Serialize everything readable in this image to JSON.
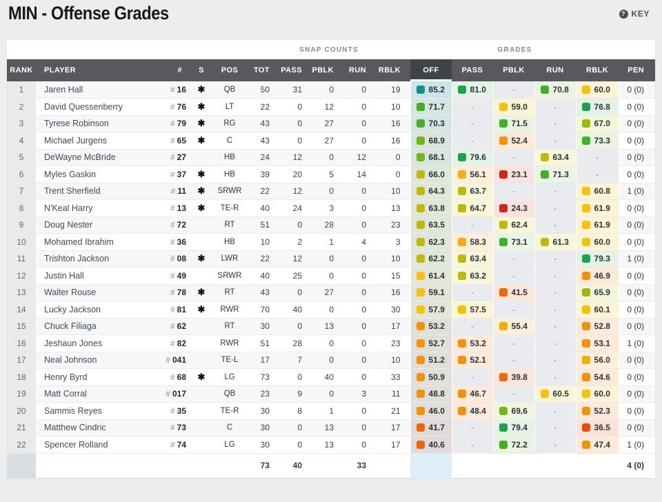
{
  "header": {
    "title": "MIN - Offense Grades",
    "key_label": "KEY",
    "key_icon": "?"
  },
  "table": {
    "group_headers": {
      "snap_counts": "SNAP COUNTS",
      "grades": "GRADES"
    },
    "columns": [
      "RANK",
      "PLAYER",
      "#",
      "S",
      "POS",
      "TOT",
      "PASS",
      "PBLK",
      "RUN",
      "RBLK",
      "OFF",
      "PASS",
      "PBLK",
      "RUN",
      "RBLK",
      "PEN"
    ],
    "rows": [
      {
        "rank": "1",
        "name": "Jaren Hall",
        "jersey": "16",
        "star": "✱",
        "pos": "QB",
        "snaps": [
          "50",
          "31",
          "0",
          "0",
          "19"
        ],
        "grades": [
          {
            "v": "85.2",
            "c": "teal"
          },
          {
            "v": "81.0",
            "c": "green1"
          },
          null,
          {
            "v": "70.8",
            "c": "green2"
          },
          {
            "v": "60.0",
            "c": "yellow"
          }
        ],
        "pen": "0 (0)"
      },
      {
        "rank": "2",
        "name": "David Quessenberry",
        "jersey": "76",
        "star": "✱",
        "pos": "LT",
        "snaps": [
          "22",
          "0",
          "12",
          "0",
          "10"
        ],
        "grades": [
          {
            "v": "71.7",
            "c": "green2"
          },
          null,
          {
            "v": "59.0",
            "c": "yellow"
          },
          null,
          {
            "v": "76.8",
            "c": "green1"
          }
        ],
        "pen": "0 (0)"
      },
      {
        "rank": "3",
        "name": "Tyrese Robinson",
        "jersey": "79",
        "star": "✱",
        "pos": "RG",
        "snaps": [
          "43",
          "0",
          "27",
          "0",
          "16"
        ],
        "grades": [
          {
            "v": "70.3",
            "c": "green2"
          },
          null,
          {
            "v": "71.5",
            "c": "green2"
          },
          null,
          {
            "v": "67.0",
            "c": "lime"
          }
        ],
        "pen": "0 (0)"
      },
      {
        "rank": "4",
        "name": "Michael Jurgens",
        "jersey": "65",
        "star": "✱",
        "pos": "C",
        "snaps": [
          "43",
          "0",
          "27",
          "0",
          "16"
        ],
        "grades": [
          {
            "v": "68.9",
            "c": "ygreen"
          },
          null,
          {
            "v": "52.4",
            "c": "orange"
          },
          null,
          {
            "v": "73.3",
            "c": "green2"
          }
        ],
        "pen": "0 (0)"
      },
      {
        "rank": "5",
        "name": "DeWayne McBride",
        "jersey": "27",
        "star": "",
        "pos": "HB",
        "snaps": [
          "24",
          "12",
          "0",
          "12",
          "0"
        ],
        "grades": [
          {
            "v": "68.1",
            "c": "ygreen"
          },
          {
            "v": "79.6",
            "c": "green1"
          },
          null,
          {
            "v": "63.4",
            "c": "olive"
          },
          null
        ],
        "pen": "0 (0)"
      },
      {
        "rank": "6",
        "name": "Myles Gaskin",
        "jersey": "37",
        "star": "✱",
        "pos": "HB",
        "snaps": [
          "39",
          "20",
          "5",
          "14",
          "0"
        ],
        "grades": [
          {
            "v": "66.0",
            "c": "olive"
          },
          {
            "v": "56.1",
            "c": "yorange"
          },
          {
            "v": "23.1",
            "c": "red"
          },
          {
            "v": "71.3",
            "c": "green2"
          },
          null
        ],
        "pen": "0 (0)"
      },
      {
        "rank": "7",
        "name": "Trent Sherfield",
        "jersey": "11",
        "star": "✱",
        "pos": "SRWR",
        "snaps": [
          "22",
          "12",
          "0",
          "0",
          "10"
        ],
        "grades": [
          {
            "v": "64.3",
            "c": "olive"
          },
          {
            "v": "63.7",
            "c": "olive"
          },
          null,
          null,
          {
            "v": "60.8",
            "c": "yellow"
          }
        ],
        "pen": "1 (0)"
      },
      {
        "rank": "8",
        "name": "N'Keal Harry",
        "jersey": "13",
        "star": "✱",
        "pos": "TE-R",
        "snaps": [
          "40",
          "24",
          "3",
          "0",
          "13"
        ],
        "grades": [
          {
            "v": "63.8",
            "c": "olive"
          },
          {
            "v": "64.7",
            "c": "olive"
          },
          {
            "v": "24.3",
            "c": "red"
          },
          null,
          {
            "v": "61.9",
            "c": "yellow"
          }
        ],
        "pen": "0 (0)"
      },
      {
        "rank": "9",
        "name": "Doug Nester",
        "jersey": "72",
        "star": "",
        "pos": "RT",
        "snaps": [
          "51",
          "0",
          "28",
          "0",
          "23"
        ],
        "grades": [
          {
            "v": "63.5",
            "c": "olive"
          },
          null,
          {
            "v": "62.4",
            "c": "olive"
          },
          null,
          {
            "v": "61.9",
            "c": "yellow"
          }
        ],
        "pen": "0 (0)"
      },
      {
        "rank": "10",
        "name": "Mohamed Ibrahim",
        "jersey": "36",
        "star": "",
        "pos": "HB",
        "snaps": [
          "10",
          "2",
          "1",
          "4",
          "3"
        ],
        "grades": [
          {
            "v": "62.3",
            "c": "olive"
          },
          {
            "v": "58.3",
            "c": "yorange"
          },
          {
            "v": "73.1",
            "c": "green2"
          },
          {
            "v": "61.3",
            "c": "olive"
          },
          {
            "v": "60.0",
            "c": "yellow"
          }
        ],
        "pen": "0 (0)"
      },
      {
        "rank": "11",
        "name": "Trishton Jackson",
        "jersey": "08",
        "star": "✱",
        "pos": "LWR",
        "snaps": [
          "22",
          "12",
          "0",
          "0",
          "10"
        ],
        "grades": [
          {
            "v": "62.2",
            "c": "olive"
          },
          {
            "v": "63.4",
            "c": "olive"
          },
          null,
          null,
          {
            "v": "79.3",
            "c": "green1"
          }
        ],
        "pen": "1 (0)"
      },
      {
        "rank": "12",
        "name": "Justin Hall",
        "jersey": "49",
        "star": "",
        "pos": "SRWR",
        "snaps": [
          "40",
          "25",
          "0",
          "0",
          "15"
        ],
        "grades": [
          {
            "v": "61.4",
            "c": "yellow"
          },
          {
            "v": "63.2",
            "c": "olive"
          },
          null,
          null,
          {
            "v": "46.9",
            "c": "orange"
          }
        ],
        "pen": "0 (0)"
      },
      {
        "rank": "13",
        "name": "Walter Rouse",
        "jersey": "78",
        "star": "✱",
        "pos": "RT",
        "snaps": [
          "43",
          "0",
          "27",
          "0",
          "16"
        ],
        "grades": [
          {
            "v": "59.1",
            "c": "yellow"
          },
          null,
          {
            "v": "41.5",
            "c": "dorange"
          },
          null,
          {
            "v": "65.9",
            "c": "lime"
          }
        ],
        "pen": "0 (0)"
      },
      {
        "rank": "14",
        "name": "Lucky Jackson",
        "jersey": "81",
        "star": "✱",
        "pos": "RWR",
        "snaps": [
          "70",
          "40",
          "0",
          "0",
          "30"
        ],
        "grades": [
          {
            "v": "57.9",
            "c": "yellow"
          },
          {
            "v": "57.5",
            "c": "yellow"
          },
          null,
          null,
          {
            "v": "60.1",
            "c": "yellow"
          }
        ],
        "pen": "0 (0)"
      },
      {
        "rank": "15",
        "name": "Chuck Filiaga",
        "jersey": "62",
        "star": "",
        "pos": "RT",
        "snaps": [
          "30",
          "0",
          "13",
          "0",
          "17"
        ],
        "grades": [
          {
            "v": "53.2",
            "c": "orange"
          },
          null,
          {
            "v": "55.4",
            "c": "yorange"
          },
          null,
          {
            "v": "52.8",
            "c": "orange"
          }
        ],
        "pen": "0 (0)"
      },
      {
        "rank": "16",
        "name": "Jeshaun Jones",
        "jersey": "82",
        "star": "",
        "pos": "RWR",
        "snaps": [
          "51",
          "28",
          "0",
          "0",
          "23"
        ],
        "grades": [
          {
            "v": "52.7",
            "c": "orange"
          },
          {
            "v": "53.2",
            "c": "orange"
          },
          null,
          null,
          {
            "v": "53.1",
            "c": "orange"
          }
        ],
        "pen": "1 (0)"
      },
      {
        "rank": "17",
        "name": "Neal Johnson",
        "jersey": "041",
        "star": "",
        "pos": "TE-L",
        "snaps": [
          "17",
          "7",
          "0",
          "0",
          "10"
        ],
        "grades": [
          {
            "v": "51.2",
            "c": "orange"
          },
          {
            "v": "52.1",
            "c": "orange"
          },
          null,
          null,
          {
            "v": "56.0",
            "c": "yorange"
          }
        ],
        "pen": "0 (0)"
      },
      {
        "rank": "18",
        "name": "Henry Byrd",
        "jersey": "68",
        "star": "✱",
        "pos": "LG",
        "snaps": [
          "73",
          "0",
          "40",
          "0",
          "33"
        ],
        "grades": [
          {
            "v": "50.9",
            "c": "orange"
          },
          null,
          {
            "v": "39.8",
            "c": "dorange"
          },
          null,
          {
            "v": "54.6",
            "c": "orange"
          }
        ],
        "pen": "0 (0)"
      },
      {
        "rank": "19",
        "name": "Matt Corral",
        "jersey": "017",
        "star": "",
        "pos": "QB",
        "snaps": [
          "23",
          "9",
          "0",
          "3",
          "11"
        ],
        "grades": [
          {
            "v": "48.8",
            "c": "orange"
          },
          {
            "v": "46.7",
            "c": "orange"
          },
          null,
          {
            "v": "60.5",
            "c": "yellow"
          },
          {
            "v": "60.0",
            "c": "yellow"
          }
        ],
        "pen": "0 (0)"
      },
      {
        "rank": "20",
        "name": "Sammis Reyes",
        "jersey": "35",
        "star": "",
        "pos": "TE-R",
        "snaps": [
          "30",
          "8",
          "1",
          "0",
          "21"
        ],
        "grades": [
          {
            "v": "46.0",
            "c": "orange"
          },
          {
            "v": "48.4",
            "c": "orange"
          },
          {
            "v": "69.6",
            "c": "ygreen"
          },
          null,
          {
            "v": "52.3",
            "c": "orange"
          }
        ],
        "pen": "0 (0)"
      },
      {
        "rank": "21",
        "name": "Matthew Cindric",
        "jersey": "73",
        "star": "",
        "pos": "C",
        "snaps": [
          "30",
          "0",
          "13",
          "0",
          "17"
        ],
        "grades": [
          {
            "v": "41.7",
            "c": "dorange"
          },
          null,
          {
            "v": "79.4",
            "c": "green1"
          },
          null,
          {
            "v": "36.5",
            "c": "rorange"
          }
        ],
        "pen": "0 (0)"
      },
      {
        "rank": "22",
        "name": "Spencer Rolland",
        "jersey": "74",
        "star": "",
        "pos": "LG",
        "snaps": [
          "30",
          "0",
          "13",
          "0",
          "17"
        ],
        "grades": [
          {
            "v": "40.6",
            "c": "dorange"
          },
          null,
          {
            "v": "72.2",
            "c": "green2"
          },
          null,
          {
            "v": "47.4",
            "c": "orange"
          }
        ],
        "pen": "1 (0)"
      }
    ],
    "footer": {
      "tot": "73",
      "pass": "40",
      "pblk": "",
      "run": "33",
      "rblk": "",
      "pen": "4 (0)"
    }
  },
  "palette": {
    "teal": {
      "badge": "#0d9488",
      "tint": "#e2f1ef"
    },
    "green1": {
      "badge": "#1aa34c",
      "tint": "#e5f3e7"
    },
    "green2": {
      "badge": "#45ad26",
      "tint": "#eaf4e3"
    },
    "ygreen": {
      "badge": "#76b41d",
      "tint": "#f0f5de"
    },
    "lime": {
      "badge": "#9db713",
      "tint": "#f4f6d9"
    },
    "olive": {
      "badge": "#bcba10",
      "tint": "#f8f6d8"
    },
    "yellow": {
      "badge": "#f2c20e",
      "tint": "#fdf4d8"
    },
    "yorange": {
      "badge": "#f6ad0c",
      "tint": "#fdefd9"
    },
    "orange": {
      "badge": "#f2910d",
      "tint": "#fdeada"
    },
    "dorange": {
      "badge": "#ed670f",
      "tint": "#fce5d9"
    },
    "rorange": {
      "badge": "#e54d12",
      "tint": "#fbe2d8"
    },
    "red": {
      "badge": "#cc2a1e",
      "tint": "#fae2df"
    }
  }
}
